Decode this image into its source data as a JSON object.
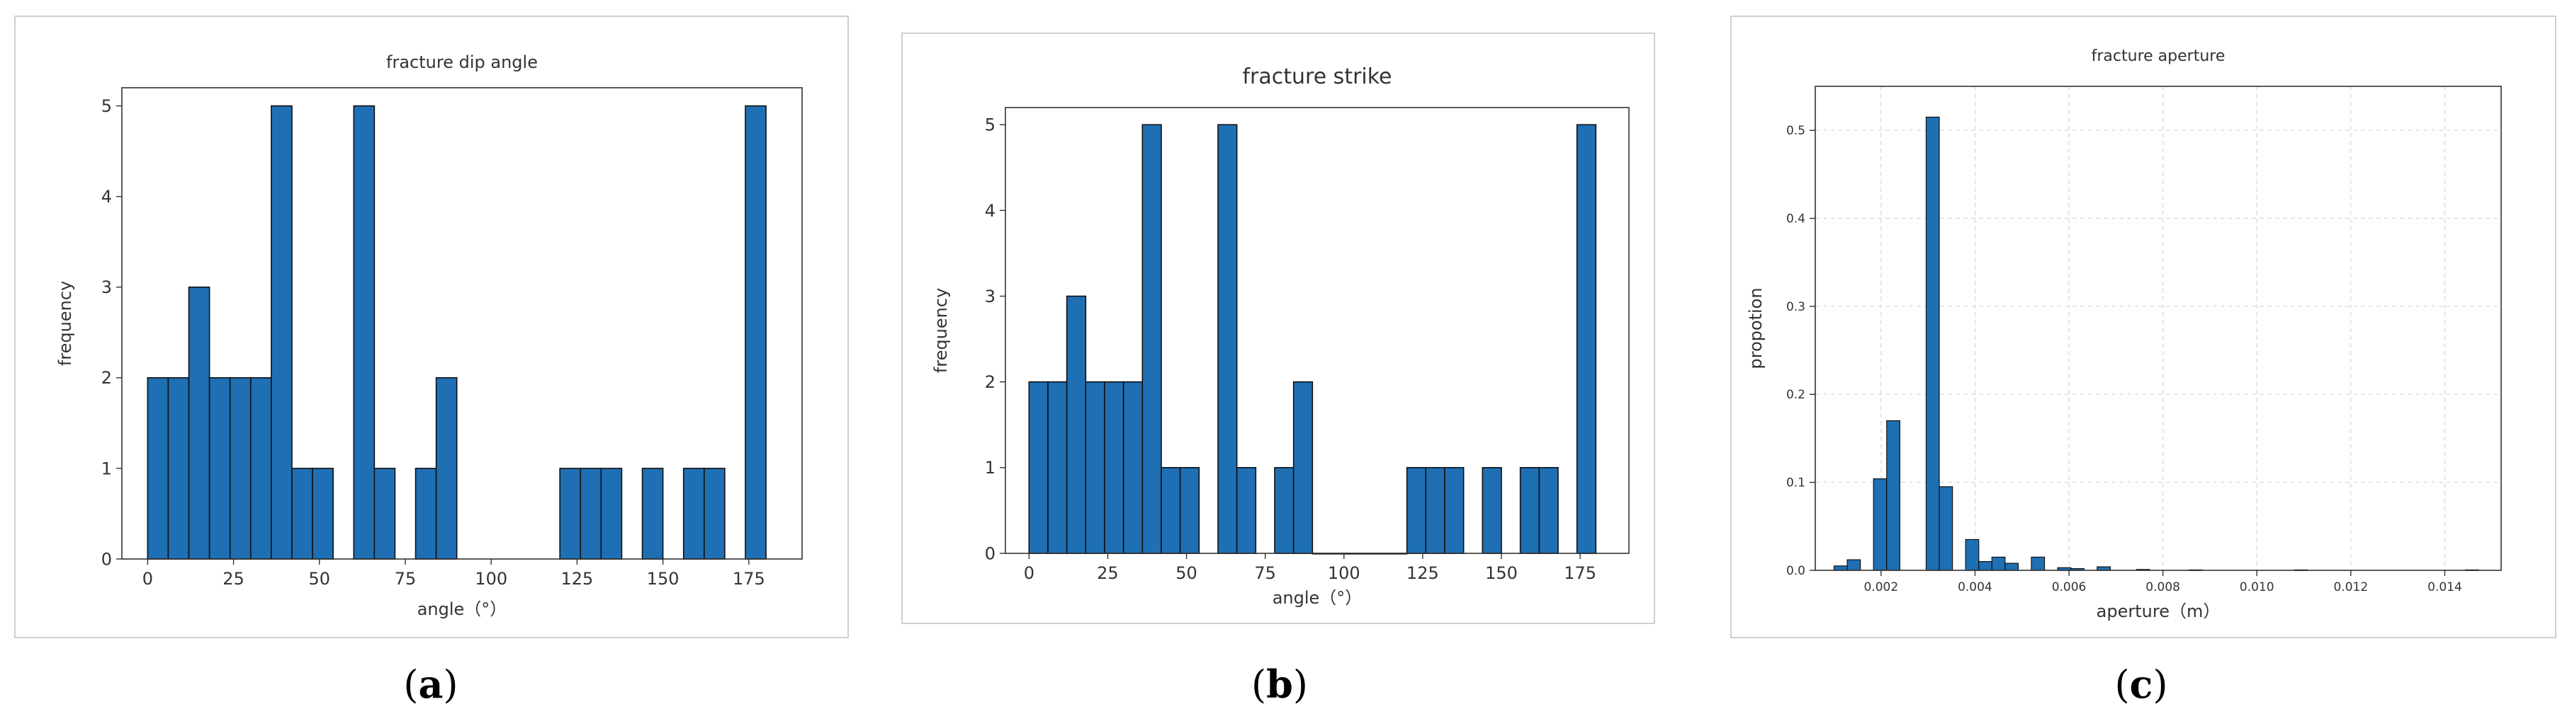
{
  "chart_data": [
    {
      "type": "bar",
      "title": "fracture dip angle",
      "xlabel": "angle（°）",
      "ylabel": "frequency",
      "xlim": [
        -7.5,
        190.5
      ],
      "ylim": [
        0,
        5.2
      ],
      "xticks": [
        0,
        25,
        50,
        75,
        100,
        125,
        150,
        175
      ],
      "yticks": [
        0,
        1,
        2,
        3,
        4,
        5
      ],
      "bin_width": 6,
      "bins": [
        {
          "x": 0,
          "value": 2
        },
        {
          "x": 6,
          "value": 2
        },
        {
          "x": 12,
          "value": 3
        },
        {
          "x": 18,
          "value": 2
        },
        {
          "x": 24,
          "value": 2
        },
        {
          "x": 30,
          "value": 2
        },
        {
          "x": 36,
          "value": 5
        },
        {
          "x": 42,
          "value": 1
        },
        {
          "x": 48,
          "value": 1
        },
        {
          "x": 60,
          "value": 5
        },
        {
          "x": 66,
          "value": 1
        },
        {
          "x": 78,
          "value": 1
        },
        {
          "x": 84,
          "value": 2
        },
        {
          "x": 120,
          "value": 1
        },
        {
          "x": 126,
          "value": 1
        },
        {
          "x": 132,
          "value": 1
        },
        {
          "x": 144,
          "value": 1
        },
        {
          "x": 156,
          "value": 1
        },
        {
          "x": 162,
          "value": 1
        },
        {
          "x": 174,
          "value": 5
        }
      ],
      "bar_color": "#1f6fb4",
      "grid": false
    },
    {
      "type": "bar",
      "title": "fracture strike",
      "xlabel": "angle（°）",
      "ylabel": "frequency",
      "xlim": [
        -7.5,
        190.5
      ],
      "ylim": [
        0,
        5.2
      ],
      "xticks": [
        0,
        25,
        50,
        75,
        100,
        125,
        150,
        175
      ],
      "yticks": [
        0,
        1,
        2,
        3,
        4,
        5
      ],
      "bin_width": 6,
      "bins": [
        {
          "x": 0,
          "value": 2
        },
        {
          "x": 6,
          "value": 2
        },
        {
          "x": 12,
          "value": 3
        },
        {
          "x": 18,
          "value": 2
        },
        {
          "x": 24,
          "value": 2
        },
        {
          "x": 30,
          "value": 2
        },
        {
          "x": 36,
          "value": 5
        },
        {
          "x": 42,
          "value": 1
        },
        {
          "x": 48,
          "value": 1
        },
        {
          "x": 60,
          "value": 5
        },
        {
          "x": 66,
          "value": 1
        },
        {
          "x": 78,
          "value": 1
        },
        {
          "x": 84,
          "value": 2
        },
        {
          "x": 90,
          "value": 0
        },
        {
          "x": 96,
          "value": 0
        },
        {
          "x": 102,
          "value": 0
        },
        {
          "x": 108,
          "value": 0
        },
        {
          "x": 114,
          "value": 0
        },
        {
          "x": 120,
          "value": 1
        },
        {
          "x": 126,
          "value": 1
        },
        {
          "x": 132,
          "value": 1
        },
        {
          "x": 144,
          "value": 1
        },
        {
          "x": 156,
          "value": 1
        },
        {
          "x": 162,
          "value": 1
        },
        {
          "x": 174,
          "value": 5
        }
      ],
      "bar_color": "#1f6fb4",
      "grid": false
    },
    {
      "type": "bar",
      "title": "fracture aperture",
      "xlabel": "aperture（m）",
      "ylabel": "propotion",
      "xlim": [
        0.0006,
        0.0152
      ],
      "ylim": [
        0,
        0.55
      ],
      "xticks": [
        0.002,
        0.004,
        0.006,
        0.008,
        0.01,
        0.012,
        0.014
      ],
      "xtick_labels": [
        "0.002",
        "0.004",
        "0.006",
        "0.008",
        "0.010",
        "0.012",
        "0.014"
      ],
      "yticks": [
        0.0,
        0.1,
        0.2,
        0.3,
        0.4,
        0.5
      ],
      "ytick_labels": [
        "0.0",
        "0.1",
        "0.2",
        "0.3",
        "0.4",
        "0.5"
      ],
      "bin_width": 0.00028,
      "bins": [
        {
          "x": 0.001,
          "value": 0.005
        },
        {
          "x": 0.00128,
          "value": 0.012
        },
        {
          "x": 0.00184,
          "value": 0.104
        },
        {
          "x": 0.00212,
          "value": 0.17
        },
        {
          "x": 0.00296,
          "value": 0.515
        },
        {
          "x": 0.00324,
          "value": 0.095
        },
        {
          "x": 0.0038,
          "value": 0.035
        },
        {
          "x": 0.00408,
          "value": 0.01
        },
        {
          "x": 0.00436,
          "value": 0.015
        },
        {
          "x": 0.00464,
          "value": 0.008
        },
        {
          "x": 0.0052,
          "value": 0.015
        },
        {
          "x": 0.00576,
          "value": 0.003
        },
        {
          "x": 0.00604,
          "value": 0.002
        },
        {
          "x": 0.0066,
          "value": 0.004
        },
        {
          "x": 0.00744,
          "value": 0.001
        },
        {
          "x": 0.00856,
          "value": 0.0005
        },
        {
          "x": 0.0108,
          "value": 0.0005
        },
        {
          "x": 0.01444,
          "value": 0.0005
        }
      ],
      "bar_color": "#1f6fb4",
      "grid": true
    }
  ],
  "captions": [
    "a",
    "b",
    "c"
  ]
}
